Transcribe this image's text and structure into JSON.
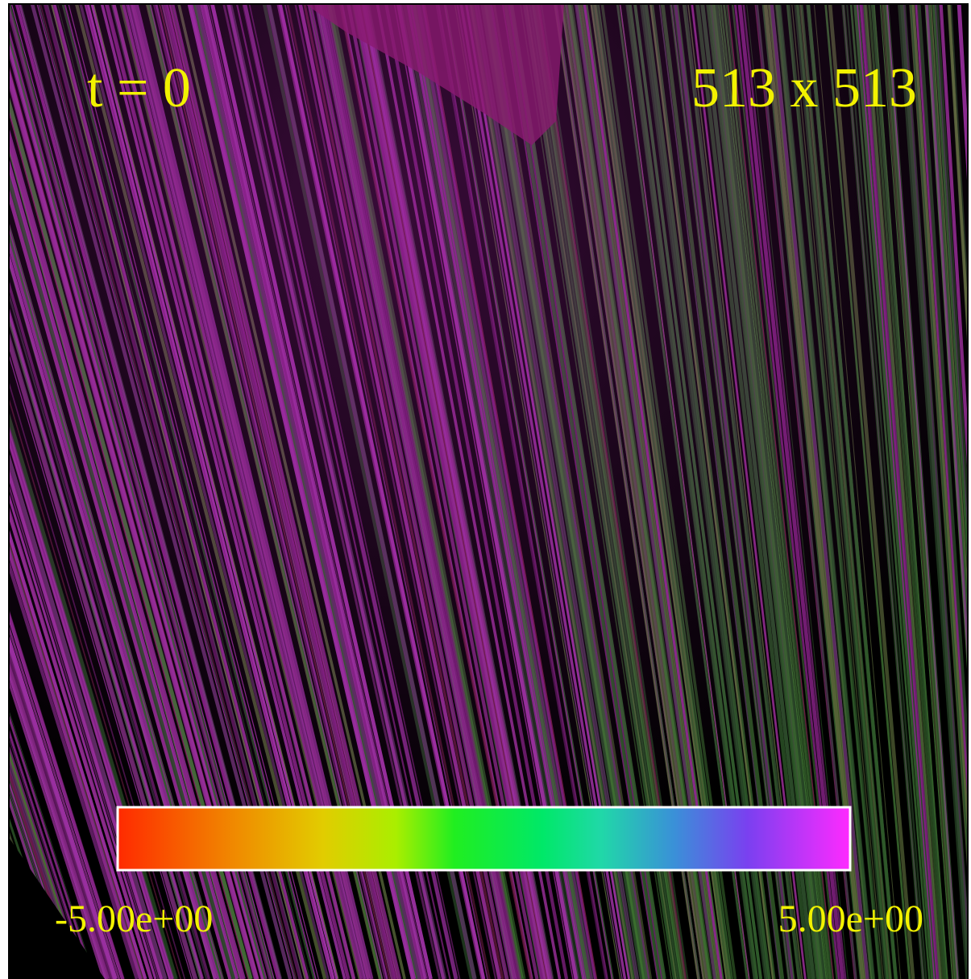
{
  "annotations": {
    "time": "t = 0",
    "resolution": "513 x 513"
  },
  "colorbar": {
    "min_label": "-5.00e+00",
    "max_label": "5.00e+00"
  }
}
